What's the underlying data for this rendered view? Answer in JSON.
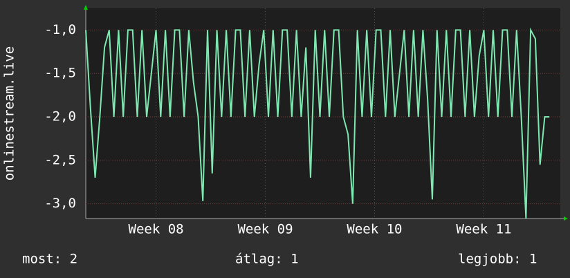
{
  "chart_data": {
    "type": "line",
    "ylabel": "onlinestream.live",
    "x": [
      0,
      0.3,
      0.6,
      0.9,
      1.2,
      1.5,
      1.8,
      2.1,
      2.4,
      2.7,
      3,
      3.3,
      3.6,
      3.9,
      4.2,
      4.5,
      4.8,
      5.1,
      5.4,
      5.7,
      6,
      6.3,
      6.6,
      6.9,
      7.2,
      7.5,
      7.8,
      8.1,
      8.4,
      8.7,
      9,
      9.3,
      9.6,
      9.9,
      10.2,
      10.5,
      10.8,
      11.1,
      11.4,
      11.7,
      12,
      12.3,
      12.6,
      12.9,
      13.2,
      13.5,
      13.8,
      14.1,
      14.4,
      14.7,
      15,
      15.3,
      15.6,
      15.9,
      16.2,
      16.5,
      16.8,
      17.1,
      17.4,
      17.7,
      18,
      18.3,
      18.6,
      18.9,
      19.2,
      19.5,
      19.8,
      20.1,
      20.4,
      20.7,
      21,
      21.3,
      21.6,
      21.9,
      22.2,
      22.5,
      22.8,
      23.1,
      23.4,
      23.7,
      24,
      24.3,
      24.6,
      24.9,
      25.2,
      25.5,
      25.8,
      26.1,
      26.4,
      26.7,
      27,
      27.3,
      27.6,
      27.9,
      28.2,
      28.5,
      28.8,
      29.1,
      29.4,
      29.7
    ],
    "series": [
      {
        "name": "onlinestream.live",
        "color": "#7de8b0",
        "values": [
          -1,
          -1.9,
          -2.7,
          -2,
          -1.2,
          -1,
          -2,
          -1,
          -2,
          -1,
          -1,
          -2,
          -1,
          -2,
          -1.5,
          -1,
          -2,
          -1,
          -2,
          -1,
          -1,
          -2,
          -1,
          -1.6,
          -2,
          -2.97,
          -1,
          -2.65,
          -1,
          -2,
          -1,
          -2,
          -1,
          -1,
          -2,
          -1,
          -2,
          -1.4,
          -1,
          -2,
          -1,
          -2,
          -1,
          -1,
          -2,
          -1,
          -2,
          -1.2,
          -2.7,
          -1,
          -2,
          -1,
          -2,
          -1,
          -1,
          -2,
          -2.2,
          -3.0,
          -1,
          -2,
          -1,
          -2,
          -1,
          -1,
          -2,
          -1,
          -2,
          -1.5,
          -1,
          -2,
          -1,
          -2,
          -1,
          -1.8,
          -2.95,
          -1,
          -2,
          -1,
          -2,
          -1,
          -1,
          -2,
          -1,
          -2,
          -1.3,
          -1,
          -2,
          -1,
          -2,
          -1,
          -1,
          -2,
          -1,
          -2,
          -3.17,
          -1,
          -1.1,
          -2.55,
          -2,
          -2
        ]
      }
    ],
    "xlim": [
      0,
      30.4
    ],
    "xticks": [
      {
        "value": 4.5,
        "label": "Week 08"
      },
      {
        "value": 11.5,
        "label": "Week 09"
      },
      {
        "value": 18.5,
        "label": "Week 10"
      },
      {
        "value": 25.5,
        "label": "Week 11"
      }
    ],
    "ylim": [
      -3.17,
      -0.75
    ],
    "yticks": [
      {
        "value": -1,
        "label": "-1,0"
      },
      {
        "value": -1.5,
        "label": "-1,5"
      },
      {
        "value": -2,
        "label": "-2,0"
      },
      {
        "value": -2.5,
        "label": "-2,5"
      },
      {
        "value": -3,
        "label": "-3,0"
      }
    ],
    "grid": true,
    "footer": [
      "most: 2",
      "átlag: 1",
      "legjobb: 1"
    ]
  }
}
